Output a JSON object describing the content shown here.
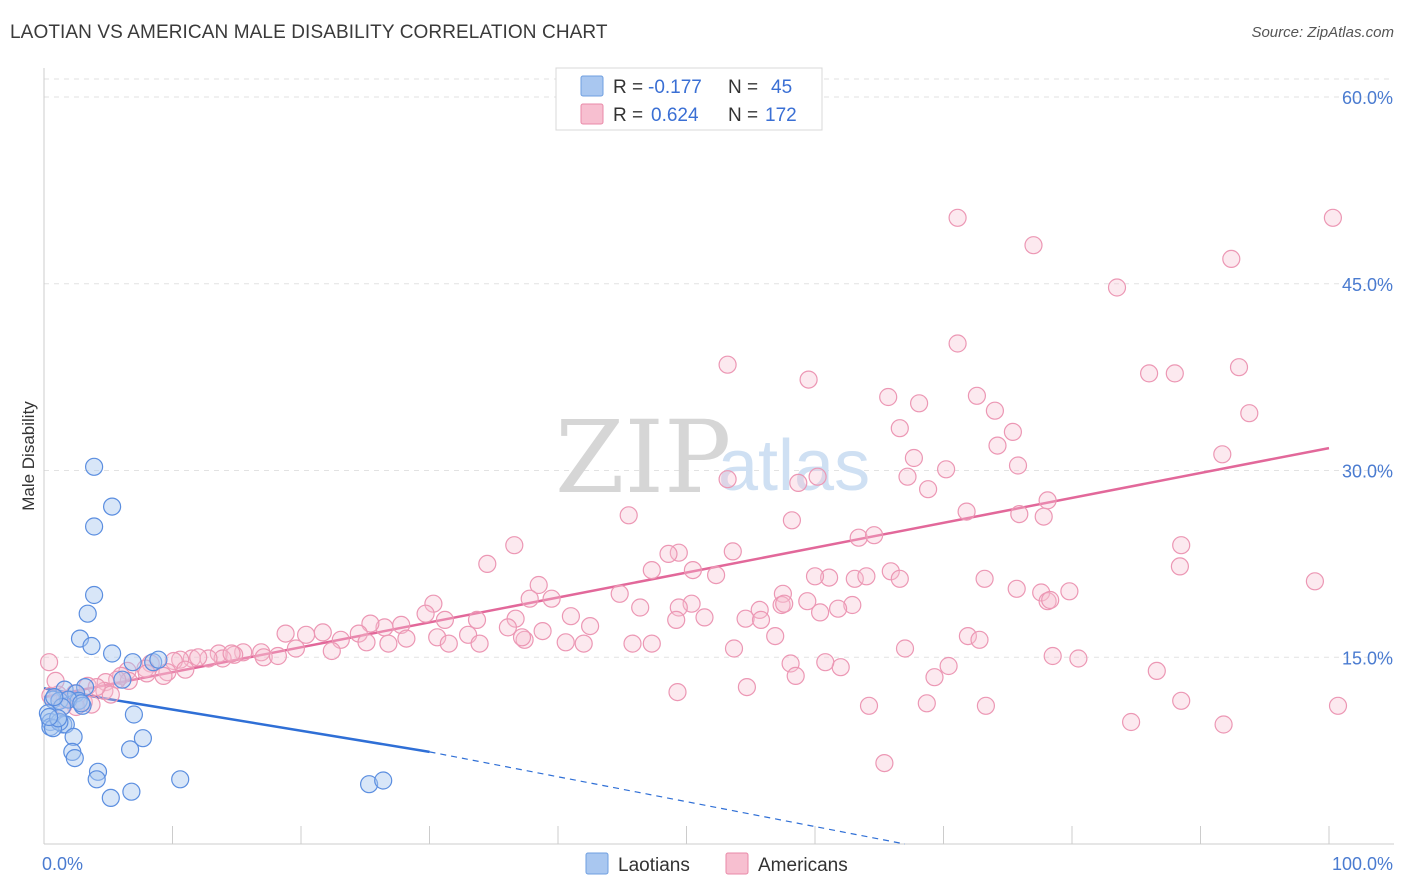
{
  "header": {
    "title": "LAOTIAN VS AMERICAN MALE DISABILITY CORRELATION CHART",
    "source": "Source: ZipAtlas.com"
  },
  "watermark": {
    "zip": "ZIP",
    "atlas": "atlas"
  },
  "legend": {
    "r_label": "R =",
    "n_label": "N =",
    "rows": [
      {
        "r": "-0.177",
        "n": "45",
        "color": "#a9c7f0",
        "stroke": "#6f9fe0"
      },
      {
        "r": "0.624",
        "n": "172",
        "color": "#f7bfd0",
        "stroke": "#e98aa8"
      }
    ]
  },
  "bottom_legend": {
    "items": [
      {
        "label": "Laotians",
        "color": "#a9c7f0"
      },
      {
        "label": "Americans",
        "color": "#f7bfd0"
      }
    ]
  },
  "chart_data": {
    "type": "scatter",
    "ylabel": "Male Disability",
    "xlim": [
      0,
      100
    ],
    "ylim": [
      0,
      60
    ],
    "x_tick_labels": [
      "0.0%",
      "100.0%"
    ],
    "y_tick_labels": [
      "15.0%",
      "30.0%",
      "45.0%",
      "60.0%"
    ],
    "y_ticks": [
      15,
      30,
      45,
      60
    ],
    "grid": "horizontal dashed",
    "legend_position": "top-center",
    "colors": {
      "laotians": "#4a80d8",
      "americans": "#e8739c"
    },
    "series": [
      {
        "name": "Laotians",
        "trend": {
          "x0": 0.0,
          "y0": 12.5,
          "x1": 30.0,
          "y1": 7.4,
          "dash_to_x": 67.0,
          "dash_to_y": 0.0
        },
        "points": [
          [
            3.9,
            30.3
          ],
          [
            5.3,
            27.1
          ],
          [
            3.9,
            25.5
          ],
          [
            3.9,
            20.0
          ],
          [
            3.4,
            18.5
          ],
          [
            2.8,
            16.5
          ],
          [
            3.7,
            15.9
          ],
          [
            5.3,
            15.3
          ],
          [
            8.5,
            14.6
          ],
          [
            6.9,
            14.6
          ],
          [
            8.9,
            14.8
          ],
          [
            6.1,
            13.2
          ],
          [
            3.2,
            12.6
          ],
          [
            1.6,
            12.4
          ],
          [
            2.5,
            12.1
          ],
          [
            0.7,
            11.6
          ],
          [
            1.2,
            11.5
          ],
          [
            2.7,
            11.5
          ],
          [
            1.9,
            11.6
          ],
          [
            3.0,
            11.1
          ],
          [
            1.4,
            11.0
          ],
          [
            0.3,
            10.5
          ],
          [
            0.5,
            9.8
          ],
          [
            1.5,
            9.6
          ],
          [
            0.5,
            9.4
          ],
          [
            1.7,
            9.6
          ],
          [
            1.2,
            9.8
          ],
          [
            0.7,
            9.3
          ],
          [
            2.3,
            8.6
          ],
          [
            7.0,
            10.4
          ],
          [
            7.7,
            8.5
          ],
          [
            6.7,
            7.6
          ],
          [
            2.2,
            7.4
          ],
          [
            2.4,
            6.9
          ],
          [
            4.2,
            5.8
          ],
          [
            4.1,
            5.2
          ],
          [
            10.6,
            5.2
          ],
          [
            25.3,
            4.8
          ],
          [
            26.4,
            5.1
          ],
          [
            6.8,
            4.2
          ],
          [
            5.2,
            3.7
          ],
          [
            0.8,
            11.8
          ],
          [
            2.9,
            11.3
          ],
          [
            1.1,
            10.1
          ],
          [
            0.4,
            10.2
          ]
        ]
      },
      {
        "name": "Americans",
        "trend": {
          "x0": 0.0,
          "y0": 11.8,
          "x1": 100.0,
          "y1": 31.8
        },
        "points": [
          [
            71.1,
            50.3
          ],
          [
            100.3,
            50.3
          ],
          [
            77.0,
            48.1
          ],
          [
            92.4,
            47.0
          ],
          [
            83.5,
            44.7
          ],
          [
            71.1,
            40.2
          ],
          [
            53.2,
            38.5
          ],
          [
            93.0,
            38.3
          ],
          [
            86.0,
            37.8
          ],
          [
            88.0,
            37.8
          ],
          [
            59.5,
            37.3
          ],
          [
            65.7,
            35.9
          ],
          [
            68.1,
            35.4
          ],
          [
            72.6,
            36.0
          ],
          [
            74.0,
            34.8
          ],
          [
            93.8,
            34.6
          ],
          [
            66.6,
            33.4
          ],
          [
            75.4,
            33.1
          ],
          [
            74.2,
            32.0
          ],
          [
            91.7,
            31.3
          ],
          [
            67.7,
            31.0
          ],
          [
            75.8,
            30.4
          ],
          [
            70.2,
            30.1
          ],
          [
            67.2,
            29.5
          ],
          [
            53.2,
            29.3
          ],
          [
            58.7,
            29.0
          ],
          [
            60.2,
            29.5
          ],
          [
            68.8,
            28.5
          ],
          [
            78.1,
            27.6
          ],
          [
            71.8,
            26.7
          ],
          [
            75.9,
            26.5
          ],
          [
            45.5,
            26.4
          ],
          [
            58.2,
            26.0
          ],
          [
            77.8,
            26.3
          ],
          [
            63.4,
            24.6
          ],
          [
            64.6,
            24.8
          ],
          [
            88.5,
            24.0
          ],
          [
            36.6,
            24.0
          ],
          [
            53.6,
            23.5
          ],
          [
            49.4,
            23.4
          ],
          [
            48.6,
            23.3
          ],
          [
            34.5,
            22.5
          ],
          [
            47.3,
            22.0
          ],
          [
            50.5,
            22.0
          ],
          [
            65.9,
            21.9
          ],
          [
            61.1,
            21.4
          ],
          [
            66.6,
            21.3
          ],
          [
            63.1,
            21.3
          ],
          [
            75.7,
            20.5
          ],
          [
            77.6,
            20.2
          ],
          [
            79.8,
            20.3
          ],
          [
            52.3,
            21.6
          ],
          [
            44.8,
            20.1
          ],
          [
            57.5,
            20.1
          ],
          [
            88.4,
            22.3
          ],
          [
            38.5,
            20.8
          ],
          [
            37.8,
            19.7
          ],
          [
            39.5,
            19.7
          ],
          [
            50.4,
            19.3
          ],
          [
            46.4,
            19.0
          ],
          [
            49.4,
            19.0
          ],
          [
            30.3,
            19.3
          ],
          [
            57.4,
            19.2
          ],
          [
            78.1,
            19.5
          ],
          [
            62.9,
            19.2
          ],
          [
            55.7,
            18.8
          ],
          [
            36.7,
            18.1
          ],
          [
            60.4,
            18.6
          ],
          [
            61.8,
            18.9
          ],
          [
            29.7,
            18.5
          ],
          [
            41.0,
            18.3
          ],
          [
            31.2,
            18.0
          ],
          [
            33.7,
            18.0
          ],
          [
            27.8,
            17.6
          ],
          [
            51.4,
            18.2
          ],
          [
            49.2,
            18.0
          ],
          [
            42.5,
            17.5
          ],
          [
            54.6,
            18.1
          ],
          [
            55.8,
            18.0
          ],
          [
            26.5,
            17.4
          ],
          [
            25.4,
            17.7
          ],
          [
            36.1,
            17.4
          ],
          [
            38.8,
            17.1
          ],
          [
            33.0,
            16.8
          ],
          [
            37.4,
            16.4
          ],
          [
            42.0,
            16.1
          ],
          [
            47.3,
            16.1
          ],
          [
            45.8,
            16.1
          ],
          [
            40.6,
            16.2
          ],
          [
            30.6,
            16.6
          ],
          [
            28.2,
            16.5
          ],
          [
            24.5,
            16.9
          ],
          [
            21.7,
            17.0
          ],
          [
            20.4,
            16.8
          ],
          [
            18.8,
            16.9
          ],
          [
            23.1,
            16.4
          ],
          [
            26.8,
            16.1
          ],
          [
            31.5,
            16.1
          ],
          [
            33.9,
            16.1
          ],
          [
            37.2,
            16.6
          ],
          [
            25.1,
            16.2
          ],
          [
            19.6,
            15.7
          ],
          [
            15.5,
            15.4
          ],
          [
            16.9,
            15.4
          ],
          [
            14.8,
            15.2
          ],
          [
            22.4,
            15.5
          ],
          [
            17.1,
            15.0
          ],
          [
            18.2,
            15.1
          ],
          [
            13.6,
            15.3
          ],
          [
            13.9,
            14.9
          ],
          [
            12.8,
            14.9
          ],
          [
            11.5,
            14.9
          ],
          [
            10.6,
            14.8
          ],
          [
            8.3,
            14.5
          ],
          [
            10.1,
            14.7
          ],
          [
            9.6,
            13.8
          ],
          [
            12.0,
            15.0
          ],
          [
            7.9,
            14.1
          ],
          [
            6.5,
            13.9
          ],
          [
            6.0,
            13.5
          ],
          [
            6.6,
            13.1
          ],
          [
            8.0,
            13.7
          ],
          [
            5.7,
            13.2
          ],
          [
            4.8,
            13.0
          ],
          [
            3.4,
            12.7
          ],
          [
            4.7,
            12.3
          ],
          [
            2.4,
            12.1
          ],
          [
            1.1,
            12.0
          ],
          [
            1.6,
            11.6
          ],
          [
            0.5,
            11.9
          ],
          [
            3.1,
            11.4
          ],
          [
            3.7,
            11.2
          ],
          [
            2.5,
            11.0
          ],
          [
            1.5,
            11.1
          ],
          [
            0.4,
            14.6
          ],
          [
            0.9,
            13.1
          ],
          [
            5.2,
            12.0
          ],
          [
            4.1,
            12.6
          ],
          [
            11.0,
            14.0
          ],
          [
            9.3,
            13.5
          ],
          [
            14.6,
            15.3
          ],
          [
            49.3,
            12.2
          ],
          [
            54.7,
            12.6
          ],
          [
            73.3,
            11.1
          ],
          [
            68.7,
            11.3
          ],
          [
            80.5,
            14.9
          ],
          [
            69.3,
            13.4
          ],
          [
            70.4,
            14.3
          ],
          [
            78.5,
            15.1
          ],
          [
            88.5,
            11.5
          ],
          [
            64.2,
            11.1
          ],
          [
            62.0,
            14.2
          ],
          [
            84.6,
            9.8
          ],
          [
            91.8,
            9.6
          ],
          [
            100.7,
            11.1
          ],
          [
            86.6,
            13.9
          ],
          [
            60.8,
            14.6
          ],
          [
            58.1,
            14.5
          ],
          [
            58.5,
            13.5
          ],
          [
            53.7,
            15.7
          ],
          [
            71.9,
            16.7
          ],
          [
            72.8,
            16.4
          ],
          [
            98.9,
            21.1
          ],
          [
            57.6,
            19.3
          ],
          [
            59.4,
            19.5
          ],
          [
            78.3,
            19.6
          ],
          [
            60.0,
            21.5
          ],
          [
            73.2,
            21.3
          ],
          [
            64.0,
            21.5
          ],
          [
            56.9,
            16.7
          ],
          [
            67.0,
            15.7
          ],
          [
            65.4,
            6.5
          ]
        ]
      }
    ]
  }
}
